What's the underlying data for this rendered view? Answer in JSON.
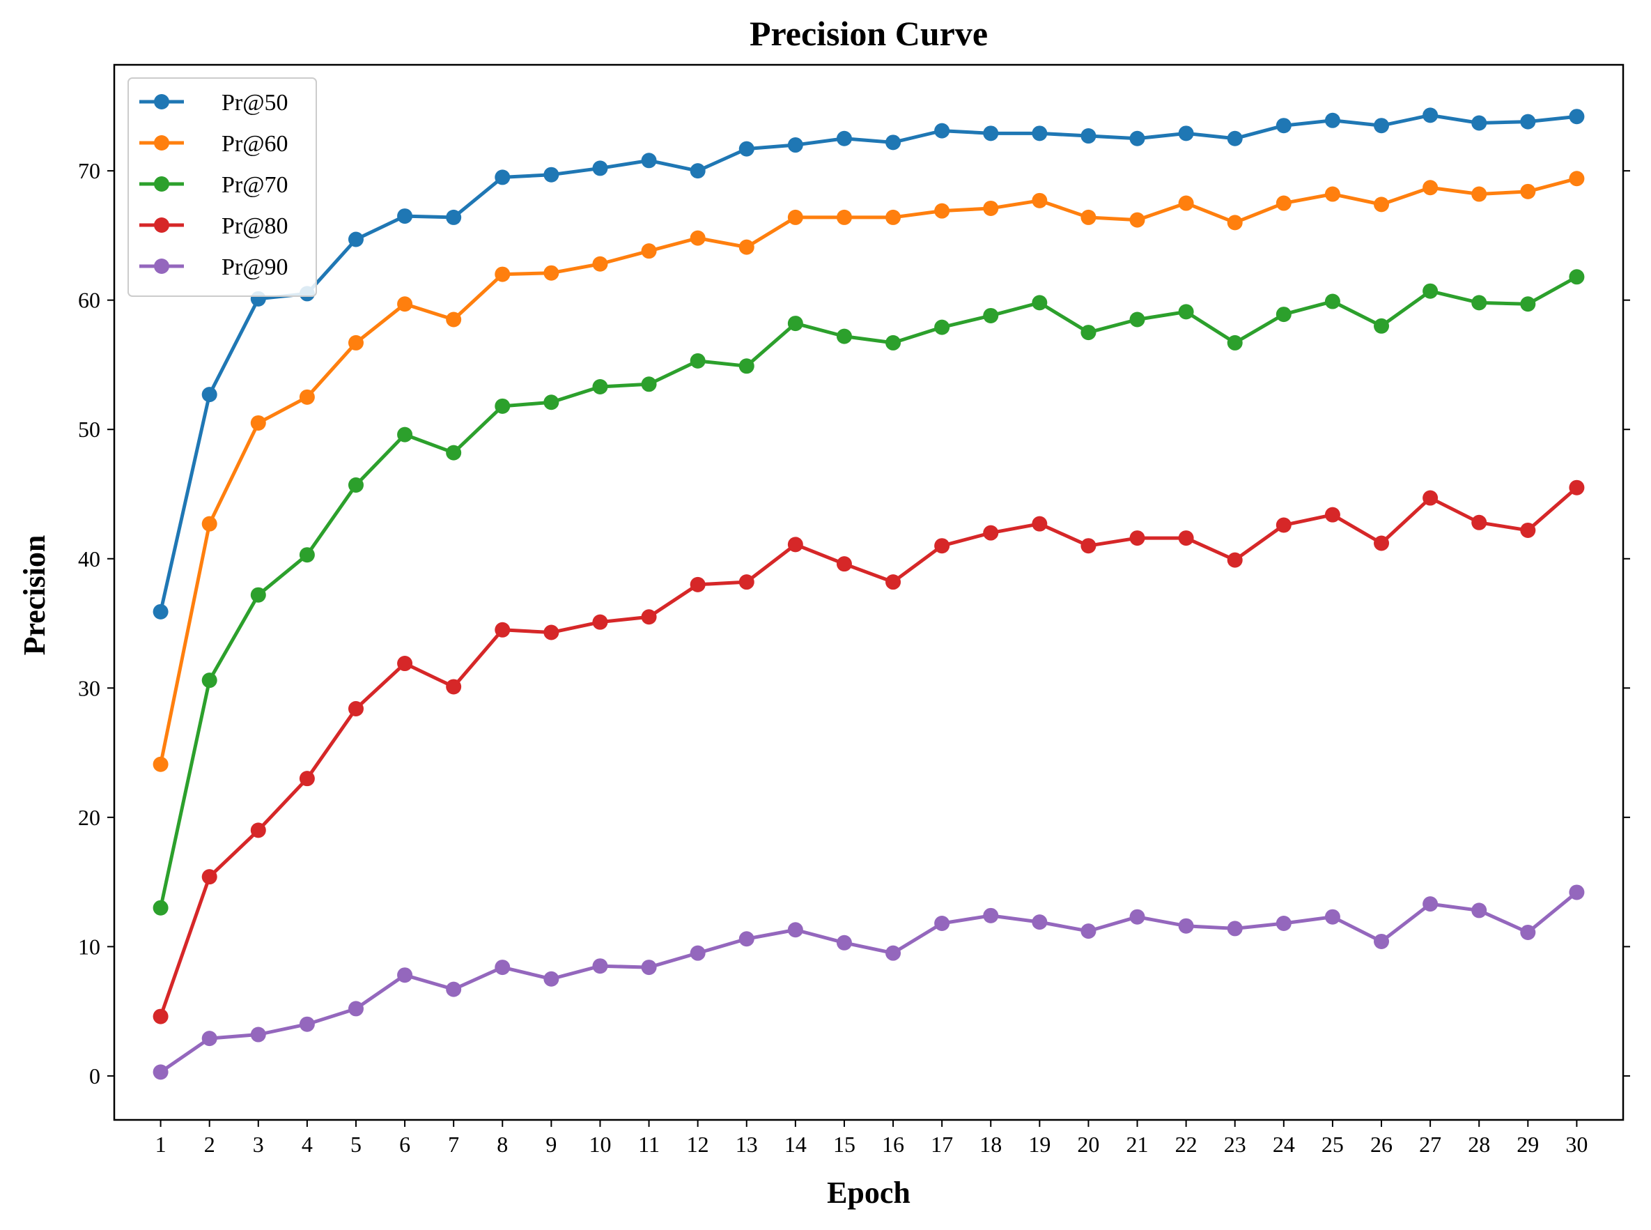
{
  "chart_data": {
    "type": "line",
    "title": "Precision Curve",
    "xlabel": "Epoch",
    "ylabel": "Precision",
    "x": [
      1,
      2,
      3,
      4,
      5,
      6,
      7,
      8,
      9,
      10,
      11,
      12,
      13,
      14,
      15,
      16,
      17,
      18,
      19,
      20,
      21,
      22,
      23,
      24,
      25,
      26,
      27,
      28,
      29,
      30
    ],
    "xlim": [
      0.05,
      30.95
    ],
    "ylim": [
      -3.4,
      78.2
    ],
    "yticks": [
      0,
      10,
      20,
      30,
      40,
      50,
      60,
      70
    ],
    "grid": false,
    "legend_position": "top-left",
    "marker": "circle",
    "series": [
      {
        "name": "Pr@50",
        "color": "#1f77b4",
        "values": [
          35.9,
          52.7,
          60.1,
          60.5,
          64.7,
          66.5,
          66.4,
          69.5,
          69.7,
          70.2,
          70.8,
          70.0,
          71.7,
          72.0,
          72.5,
          72.2,
          73.1,
          72.9,
          72.9,
          72.7,
          72.5,
          72.9,
          72.5,
          73.5,
          73.9,
          73.5,
          74.3,
          73.7,
          73.8,
          74.2
        ]
      },
      {
        "name": "Pr@60",
        "color": "#ff7f0e",
        "values": [
          24.1,
          42.7,
          50.5,
          52.5,
          56.7,
          59.7,
          58.5,
          62.0,
          62.1,
          62.8,
          63.8,
          64.8,
          64.1,
          66.4,
          66.4,
          66.4,
          66.9,
          67.1,
          67.7,
          66.4,
          66.2,
          67.5,
          66.0,
          67.5,
          68.2,
          67.4,
          68.7,
          68.2,
          68.4,
          69.4
        ]
      },
      {
        "name": "Pr@70",
        "color": "#2ca02c",
        "values": [
          13.0,
          30.6,
          37.2,
          40.3,
          45.7,
          49.6,
          48.2,
          51.8,
          52.1,
          53.3,
          53.5,
          55.3,
          54.9,
          58.2,
          57.2,
          56.7,
          57.9,
          58.8,
          59.8,
          57.5,
          58.5,
          59.1,
          56.7,
          58.9,
          59.9,
          58.0,
          60.7,
          59.8,
          59.7,
          61.8
        ]
      },
      {
        "name": "Pr@80",
        "color": "#d62728",
        "values": [
          4.6,
          15.4,
          19.0,
          23.0,
          28.4,
          31.9,
          30.1,
          34.5,
          34.3,
          35.1,
          35.5,
          38.0,
          38.2,
          41.1,
          39.6,
          38.2,
          41.0,
          42.0,
          42.7,
          41.0,
          41.6,
          41.6,
          39.9,
          42.6,
          43.4,
          41.2,
          44.7,
          42.8,
          42.2,
          45.5
        ]
      },
      {
        "name": "Pr@90",
        "color": "#9467bd",
        "values": [
          0.3,
          2.9,
          3.2,
          4.0,
          5.2,
          7.8,
          6.7,
          8.4,
          7.5,
          8.5,
          8.4,
          9.5,
          10.6,
          11.3,
          10.3,
          9.5,
          11.8,
          12.4,
          11.9,
          11.2,
          12.3,
          11.6,
          11.4,
          11.8,
          12.3,
          10.4,
          13.3,
          12.8,
          11.1,
          14.2
        ]
      }
    ]
  }
}
